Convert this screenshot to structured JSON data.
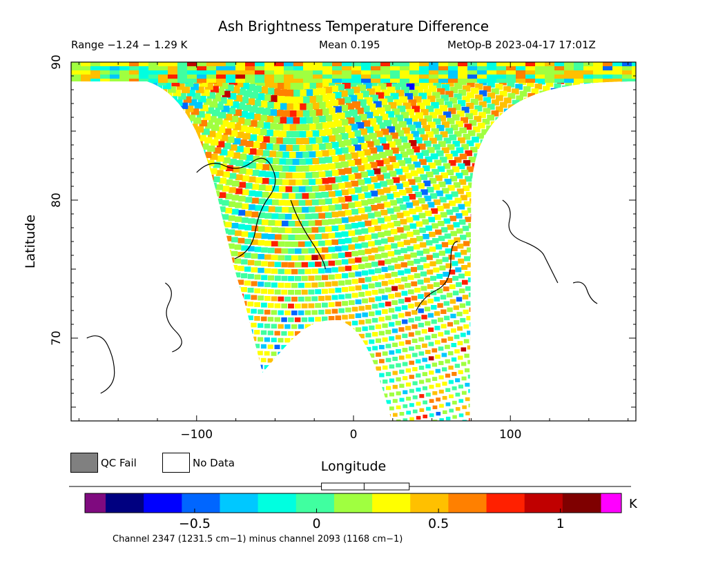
{
  "chart_data": {
    "type": "heatmap",
    "title": "Ash Brightness Temperature Difference",
    "stats": {
      "range_text": "Range −1.24 − 1.29 K",
      "mean_text": "Mean 0.195",
      "satellite_text": "MetOp-B 2023-04-17 17:01Z"
    },
    "xlabel": "Longitude",
    "ylabel": "Latitude",
    "xlim": [
      -180,
      180
    ],
    "ylim": [
      64,
      90
    ],
    "x_ticks": [
      "−100",
      "0",
      "100"
    ],
    "x_tick_values": [
      -100,
      0,
      100
    ],
    "y_ticks": [
      "70",
      "80",
      "90"
    ],
    "y_tick_values": [
      70,
      80,
      90
    ],
    "swath": {
      "description_edges": "satellite swath over Arctic; missing-data gap near 0 longitude below 71 N",
      "left_edge_lon_at_bottom": -58,
      "right_edge_lon_at_bottom": 75,
      "gap_peak_lat": 71.3
    },
    "colorbar": {
      "unit": "K",
      "range": [
        -0.95,
        1.25
      ],
      "ticks": [
        "−0.5",
        "0",
        "0.5",
        "1"
      ],
      "tick_values": [
        -0.5,
        0,
        0.5,
        1
      ],
      "colors": [
        "#7f0a7f",
        "#000080",
        "#0000ff",
        "#0066ff",
        "#00c8ff",
        "#00ffe0",
        "#40ffa0",
        "#a0ff40",
        "#ffff00",
        "#ffc000",
        "#ff8000",
        "#ff2000",
        "#c00000",
        "#7f0000",
        "#ff00ff"
      ],
      "mean_marker": 0.195,
      "slider_range": [
        0.02,
        0.38
      ]
    },
    "legend": [
      {
        "label": "QC Fail",
        "color": "#808080"
      },
      {
        "label": "No Data",
        "color": "#ffffff"
      }
    ],
    "footnote": "Channel 2347 (1231.5 cm−1) minus channel 2093 (1168 cm−1)"
  }
}
